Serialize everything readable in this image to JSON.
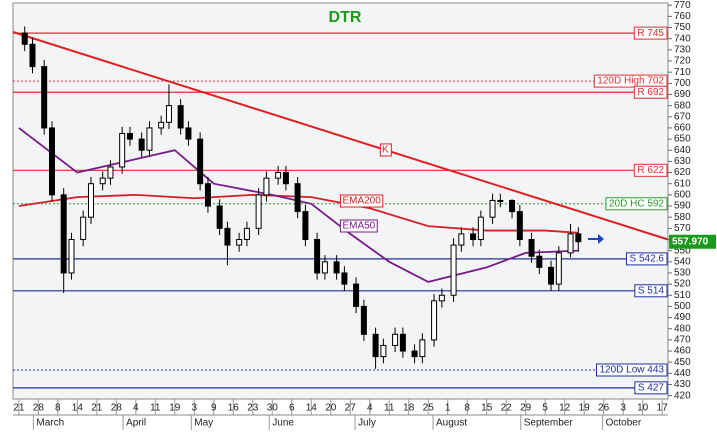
{
  "chart_data": {
    "type": "candlestick",
    "title": "DTR",
    "xlim": [
      -0.3,
      33.3
    ],
    "ylim": [
      417,
      772
    ],
    "yticks": [
      420,
      430,
      440,
      450,
      460,
      470,
      480,
      490,
      500,
      510,
      520,
      530,
      540,
      550,
      560,
      570,
      580,
      590,
      600,
      610,
      620,
      630,
      640,
      650,
      660,
      670,
      680,
      690,
      700,
      710,
      720,
      730,
      740,
      750,
      760,
      770
    ],
    "xticks": [
      {
        "value": 0,
        "label": "21"
      },
      {
        "value": 1,
        "label": "28"
      },
      {
        "value": 2,
        "label": "8"
      },
      {
        "value": 3,
        "label": "14"
      },
      {
        "value": 4,
        "label": "21"
      },
      {
        "value": 5,
        "label": "28"
      },
      {
        "value": 6,
        "label": "4"
      },
      {
        "value": 7,
        "label": "11"
      },
      {
        "value": 8,
        "label": "19"
      },
      {
        "value": 9,
        "label": "3"
      },
      {
        "value": 10,
        "label": "9"
      },
      {
        "value": 11,
        "label": "16"
      },
      {
        "value": 12,
        "label": "23"
      },
      {
        "value": 13,
        "label": "30"
      },
      {
        "value": 14,
        "label": "6"
      },
      {
        "value": 15,
        "label": "14"
      },
      {
        "value": 16,
        "label": "20"
      },
      {
        "value": 17,
        "label": "27"
      },
      {
        "value": 18,
        "label": "4"
      },
      {
        "value": 19,
        "label": "11"
      },
      {
        "value": 20,
        "label": "18"
      },
      {
        "value": 21,
        "label": "25"
      },
      {
        "value": 22,
        "label": "1"
      },
      {
        "value": 23,
        "label": "8"
      },
      {
        "value": 24,
        "label": "15"
      },
      {
        "value": 25,
        "label": "22"
      },
      {
        "value": 26,
        "label": "29"
      },
      {
        "value": 27,
        "label": "5"
      },
      {
        "value": 28,
        "label": "12"
      },
      {
        "value": 29,
        "label": "19"
      },
      {
        "value": 30,
        "label": "26"
      },
      {
        "value": 31,
        "label": "3"
      },
      {
        "value": 32,
        "label": "10"
      },
      {
        "value": 33,
        "label": "17"
      }
    ],
    "months": [
      {
        "value": 0.9,
        "label": "March"
      },
      {
        "value": 5.5,
        "label": "April"
      },
      {
        "value": 9.0,
        "label": "May"
      },
      {
        "value": 13.0,
        "label": "June"
      },
      {
        "value": 17.4,
        "label": "July"
      },
      {
        "value": 21.4,
        "label": "August"
      },
      {
        "value": 25.9,
        "label": "September"
      },
      {
        "value": 30.1,
        "label": "October"
      }
    ],
    "x": [
      0.3,
      0.7,
      1.3,
      1.7,
      2.3,
      2.7,
      3.3,
      3.7,
      4.3,
      4.7,
      5.3,
      5.7,
      6.3,
      6.7,
      7.3,
      7.7,
      8.3,
      8.7,
      9.3,
      9.7,
      10.3,
      10.7,
      11.3,
      11.7,
      12.3,
      12.7,
      13.3,
      13.7,
      14.3,
      14.7,
      15.3,
      15.7,
      16.3,
      16.7,
      17.3,
      17.7,
      18.3,
      18.7,
      19.3,
      19.7,
      20.3,
      20.7,
      21.3,
      21.7,
      22.3,
      22.7,
      23.3,
      23.7,
      24.3,
      24.7,
      25.3,
      25.7,
      26.3,
      26.7,
      27.3,
      27.7,
      28.3,
      28.7
    ],
    "open": [
      745,
      735,
      715,
      660,
      600,
      530,
      560,
      580,
      610,
      615,
      625,
      655,
      650,
      640,
      660,
      665,
      680,
      660,
      650,
      610,
      590,
      570,
      555,
      560,
      570,
      600,
      615,
      620,
      610,
      585,
      560,
      530,
      540,
      530,
      520,
      500,
      475,
      455,
      465,
      475,
      460,
      455,
      470,
      505,
      510,
      555,
      565,
      560,
      580,
      595,
      595,
      585,
      560,
      545,
      535,
      520,
      548,
      565
    ],
    "high": [
      751,
      741,
      721,
      666,
      606,
      566,
      586,
      616,
      621,
      631,
      661,
      661,
      656,
      666,
      671,
      699,
      686,
      666,
      656,
      616,
      596,
      576,
      566,
      576,
      606,
      621,
      626,
      626,
      616,
      591,
      566,
      546,
      546,
      536,
      526,
      506,
      481,
      471,
      481,
      481,
      466,
      476,
      511,
      516,
      561,
      571,
      571,
      586,
      601,
      601,
      596,
      591,
      566,
      551,
      541,
      554,
      574,
      571
    ],
    "low": [
      729,
      709,
      654,
      594,
      512,
      524,
      554,
      574,
      604,
      609,
      619,
      644,
      634,
      634,
      654,
      659,
      654,
      644,
      604,
      584,
      564,
      537,
      549,
      554,
      564,
      594,
      609,
      604,
      579,
      554,
      524,
      524,
      524,
      514,
      494,
      469,
      444,
      449,
      459,
      454,
      449,
      449,
      464,
      499,
      504,
      549,
      554,
      554,
      574,
      589,
      579,
      554,
      539,
      529,
      514,
      514,
      544,
      549
    ],
    "close": [
      735,
      715,
      660,
      600,
      530,
      560,
      580,
      610,
      615,
      625,
      655,
      650,
      640,
      660,
      665,
      680,
      660,
      650,
      610,
      590,
      570,
      555,
      560,
      570,
      600,
      615,
      620,
      610,
      585,
      560,
      530,
      540,
      530,
      520,
      500,
      475,
      455,
      465,
      475,
      460,
      455,
      470,
      505,
      510,
      555,
      565,
      560,
      580,
      595,
      595,
      585,
      560,
      545,
      535,
      520,
      548,
      565,
      558
    ],
    "series": [
      {
        "name": "EMA200",
        "color": "#d42020",
        "x": [
          0,
          3,
          6,
          9,
          12,
          15,
          18,
          21,
          24,
          27,
          28.7
        ],
        "values": [
          590,
          598,
          600,
          597,
          600,
          598,
          588,
          572,
          568,
          568,
          566
        ]
      },
      {
        "name": "EMA50",
        "color": "#7a1a8a",
        "x": [
          0,
          3,
          6,
          8,
          10,
          13,
          15,
          17,
          19,
          21,
          24,
          26,
          28.7
        ],
        "values": [
          660,
          620,
          632,
          640,
          610,
          600,
          592,
          565,
          540,
          522,
          535,
          548,
          550
        ]
      }
    ],
    "trendline": {
      "label": "K",
      "color": "#e02020",
      "x": [
        -0.3,
        33.3
      ],
      "values": [
        746,
        560
      ]
    },
    "levels": [
      {
        "label": "R 745",
        "value": 745,
        "color": "#e03030",
        "style": "solid"
      },
      {
        "label": "120D High 702",
        "value": 702,
        "color": "#e03030",
        "style": "dotted"
      },
      {
        "label": "R 692",
        "value": 692,
        "color": "#e03030",
        "style": "solid"
      },
      {
        "label": "R 622",
        "value": 622,
        "color": "#e03030",
        "style": "solid"
      },
      {
        "label": "20D HC 592",
        "value": 592,
        "color": "#2a9a2a",
        "style": "dotted"
      },
      {
        "label": "S 542.6",
        "value": 542.6,
        "color": "#2030a0",
        "style": "solid"
      },
      {
        "label": "S 514",
        "value": 514,
        "color": "#2030a0",
        "style": "solid"
      },
      {
        "label": "120D Low 443",
        "value": 443,
        "color": "#2030a0",
        "style": "dotted"
      },
      {
        "label": "S 427",
        "value": 427,
        "color": "#2030a0",
        "style": "solid"
      }
    ],
    "last_price": {
      "value": 557.97,
      "label": "557.970"
    }
  }
}
